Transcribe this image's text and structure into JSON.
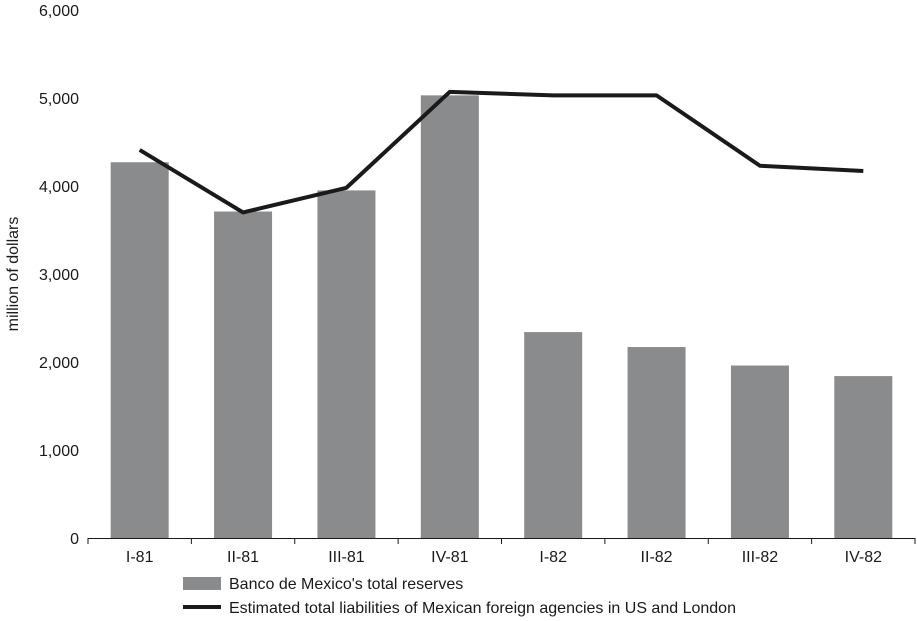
{
  "chart_data": {
    "type": "bar",
    "categories": [
      "I-81",
      "II-81",
      "III-81",
      "IV-81",
      "I-82",
      "II-82",
      "III-82",
      "IV-82"
    ],
    "series": [
      {
        "name": "Banco de Mexico's total reserves",
        "type": "bar",
        "color": "#8a8b8d",
        "values": [
          4270,
          3710,
          3950,
          5030,
          2340,
          2170,
          1960,
          1840
        ]
      },
      {
        "name": "Estimated total liabilities of Mexican foreign agencies in US and London",
        "type": "line",
        "color": "#1a1a1a",
        "values": [
          4410,
          3700,
          3980,
          5070,
          5030,
          5030,
          4230,
          4170
        ]
      }
    ],
    "ylabel": "million of dollars",
    "xlabel": "",
    "ylim": [
      0,
      6000
    ],
    "yticks": [
      "0",
      "1,000",
      "2,000",
      "3,000",
      "4,000",
      "5,000",
      "6,000"
    ],
    "ytick_values": [
      0,
      1000,
      2000,
      3000,
      4000,
      5000,
      6000
    ],
    "grid": false,
    "legend_position": "bottom"
  }
}
